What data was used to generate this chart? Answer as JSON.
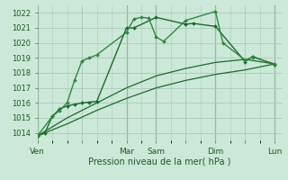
{
  "background_color": "#cce8d8",
  "grid_color": "#aacab8",
  "line_color1": "#1a6b2a",
  "line_color2": "#2d8a3e",
  "xlabel": "Pression niveau de la mer( hPa )",
  "ylim": [
    1013.5,
    1022.5
  ],
  "yticks": [
    1014,
    1015,
    1016,
    1017,
    1018,
    1019,
    1020,
    1021,
    1022
  ],
  "day_labels": [
    "Ven",
    "",
    "Mar",
    "Sam",
    "",
    "Dim",
    "",
    "Lun"
  ],
  "day_positions": [
    0,
    6,
    12,
    16,
    20,
    24,
    28,
    32
  ],
  "xmin": 0,
  "xmax": 33,
  "series1_x": [
    0,
    1,
    2,
    3,
    4,
    5,
    6,
    7,
    8,
    12,
    13,
    16,
    20,
    21,
    24,
    28,
    29,
    32
  ],
  "series1_y": [
    1013.8,
    1014.0,
    1015.1,
    1015.6,
    1015.8,
    1015.9,
    1016.0,
    1016.05,
    1016.1,
    1021.0,
    1021.0,
    1021.7,
    1021.25,
    1021.3,
    1021.1,
    1018.75,
    1019.1,
    1018.55
  ],
  "series2_x": [
    0,
    2,
    3,
    4,
    5,
    6,
    7,
    8,
    12,
    13,
    14,
    15,
    16,
    17,
    20,
    24,
    25,
    28,
    29,
    32
  ],
  "series2_y": [
    1013.8,
    1015.1,
    1015.5,
    1016.0,
    1017.5,
    1018.8,
    1019.0,
    1019.2,
    1020.7,
    1021.6,
    1021.7,
    1021.65,
    1020.4,
    1020.1,
    1021.5,
    1022.1,
    1020.0,
    1018.85,
    1019.05,
    1018.6
  ],
  "series3_x": [
    0,
    4,
    8,
    12,
    16,
    20,
    24,
    28,
    32
  ],
  "series3_y": [
    1013.8,
    1015.0,
    1016.0,
    1017.0,
    1017.8,
    1018.3,
    1018.7,
    1018.9,
    1018.6
  ],
  "series4_x": [
    0,
    4,
    8,
    12,
    16,
    20,
    24,
    28,
    32
  ],
  "series4_y": [
    1013.8,
    1014.6,
    1015.5,
    1016.3,
    1017.0,
    1017.5,
    1017.9,
    1018.2,
    1018.6
  ]
}
